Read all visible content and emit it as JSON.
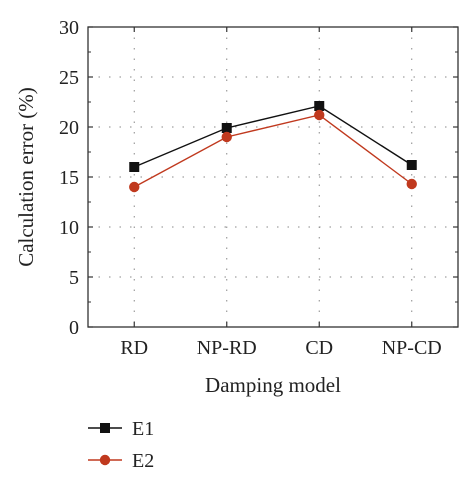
{
  "chart_data": {
    "type": "line",
    "categories": [
      "RD",
      "NP-RD",
      "CD",
      "NP-CD"
    ],
    "series": [
      {
        "name": "E1",
        "values": [
          16.0,
          19.9,
          22.1,
          16.2
        ],
        "color": "#111111",
        "marker": "square"
      },
      {
        "name": "E2",
        "values": [
          14.0,
          19.0,
          21.2,
          14.3
        ],
        "color": "#c0391e",
        "marker": "circle"
      }
    ],
    "xlabel": "Damping model",
    "ylabel": "Calculation error (%)",
    "ylim": [
      0,
      30
    ],
    "yticks": [
      0,
      5,
      10,
      15,
      20,
      25,
      30
    ],
    "grid": true,
    "legend_position": "bottom-left"
  }
}
